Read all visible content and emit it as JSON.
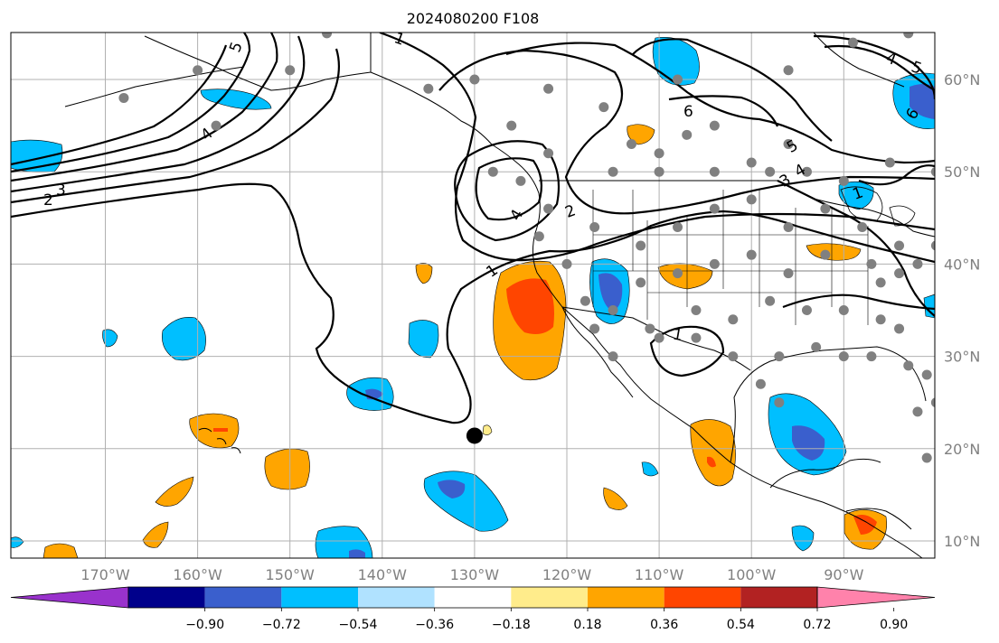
{
  "map": {
    "title": "2024080200 F108",
    "projection": "lat-lon, approx. 178°W–80°W, 8°N–66°N",
    "lon_ticks": [
      "170°W",
      "160°W",
      "150°W",
      "140°W",
      "130°W",
      "120°W",
      "110°W",
      "100°W",
      "90°W"
    ],
    "lat_ticks": [
      "60°N",
      "50°N",
      "40°N",
      "30°N",
      "20°N",
      "10°N"
    ],
    "grid": true,
    "contour_labels": [
      "1",
      "2",
      "3",
      "4",
      "5",
      "6"
    ],
    "marker": {
      "name": "black-dot",
      "lon": -130,
      "lat": 21.4,
      "color": "#000000"
    },
    "station_dot_color": "#808080"
  },
  "colorbar": {
    "orientation": "horizontal",
    "extend": "both",
    "tick_labels": [
      "−0.90",
      "−0.72",
      "−0.54",
      "−0.36",
      "−0.18",
      "0.18",
      "0.36",
      "0.54",
      "0.72",
      "0.90"
    ],
    "colors": [
      "#9932cc",
      "#00008b",
      "#3a5fcd",
      "#00bfff",
      "#b0e2ff",
      "#ffffff",
      "#ffec8b",
      "#ffa500",
      "#ff4500",
      "#b22222",
      "#ff82ab"
    ]
  },
  "colors": {
    "shade_neg_light": "#00bfff",
    "shade_neg_dark": "#3a5fcd",
    "shade_neg_darker": "#00008b",
    "shade_pos_light": "#ffa500",
    "shade_pos_dark": "#ff4500",
    "shade_pos_yellow": "#ffec8b"
  }
}
